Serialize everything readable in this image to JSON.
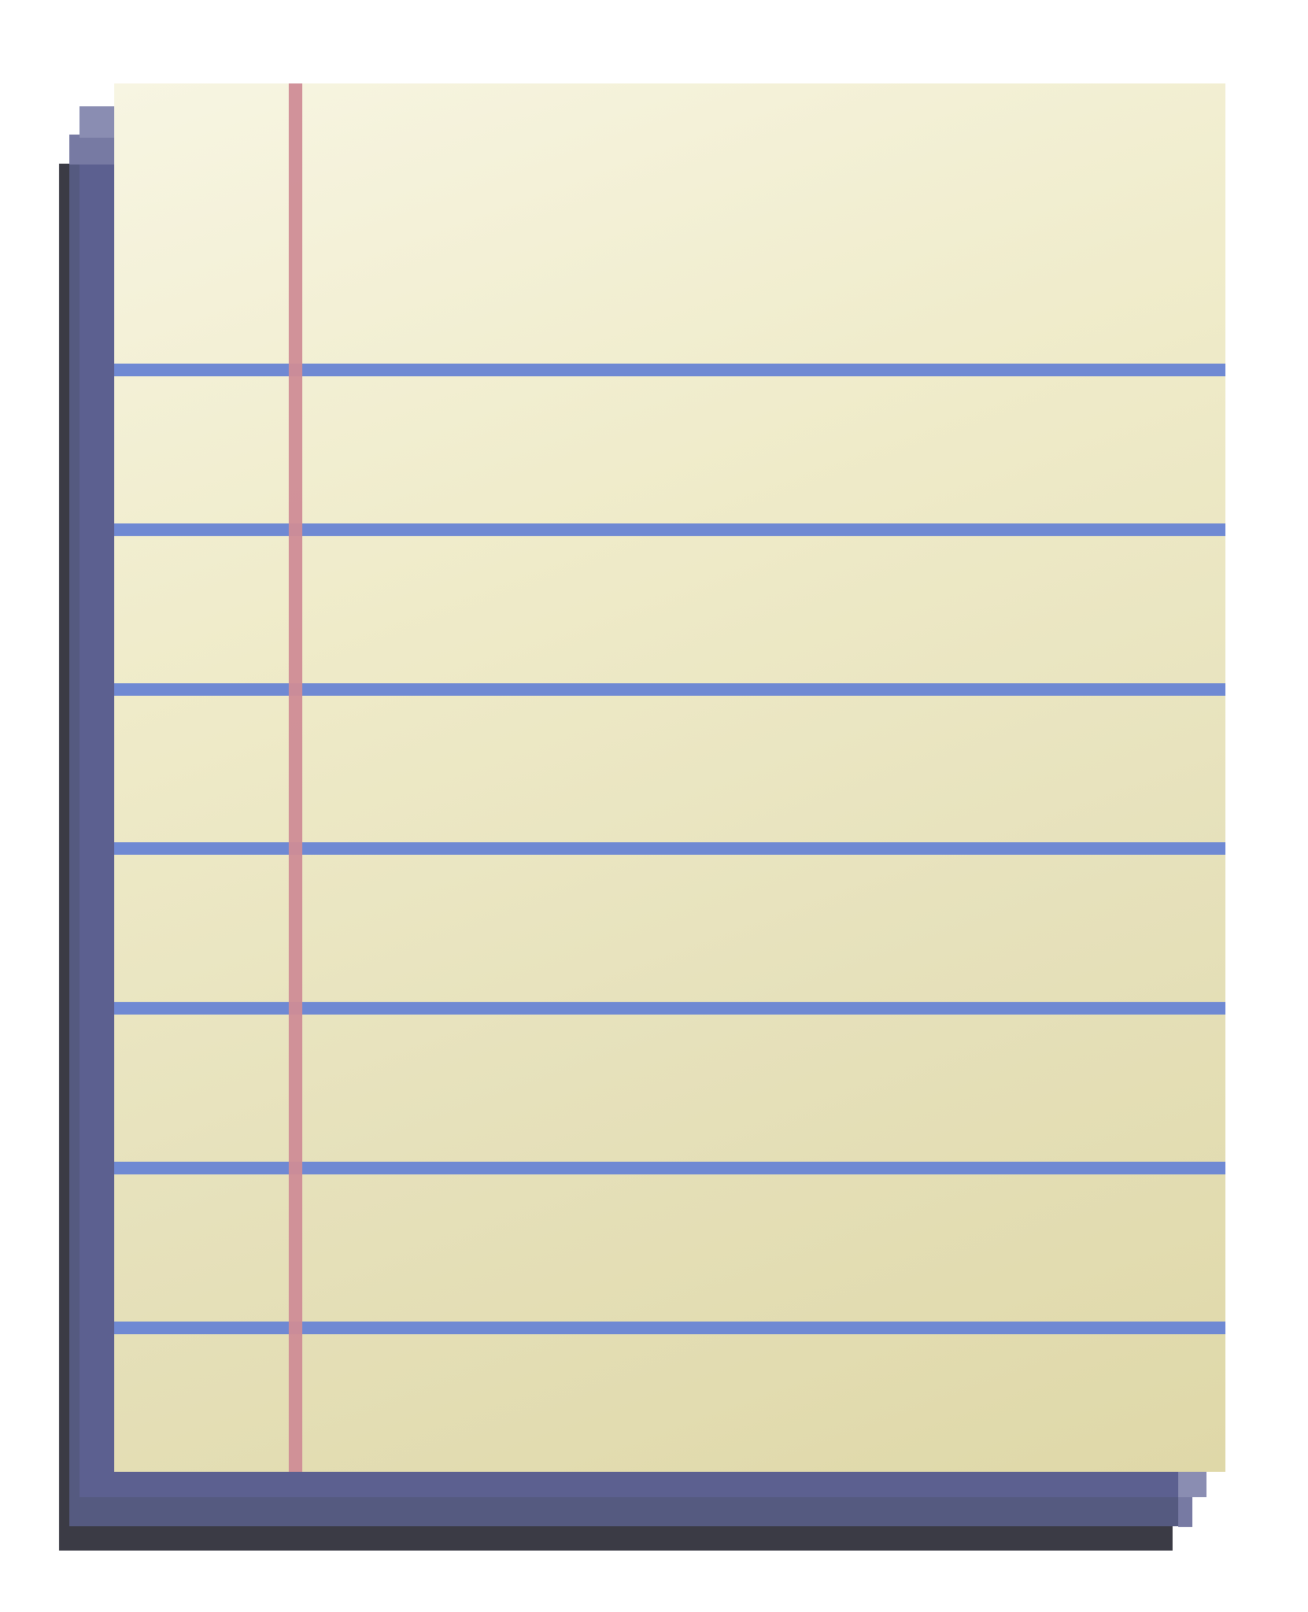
{
  "icon": "notepad-icon",
  "colors": {
    "paper": "#efebc9",
    "rule_line": "#6f89d3",
    "margin_line": "#cf8c96",
    "stack": "#5c6090",
    "shadow": "#3b3b45"
  }
}
